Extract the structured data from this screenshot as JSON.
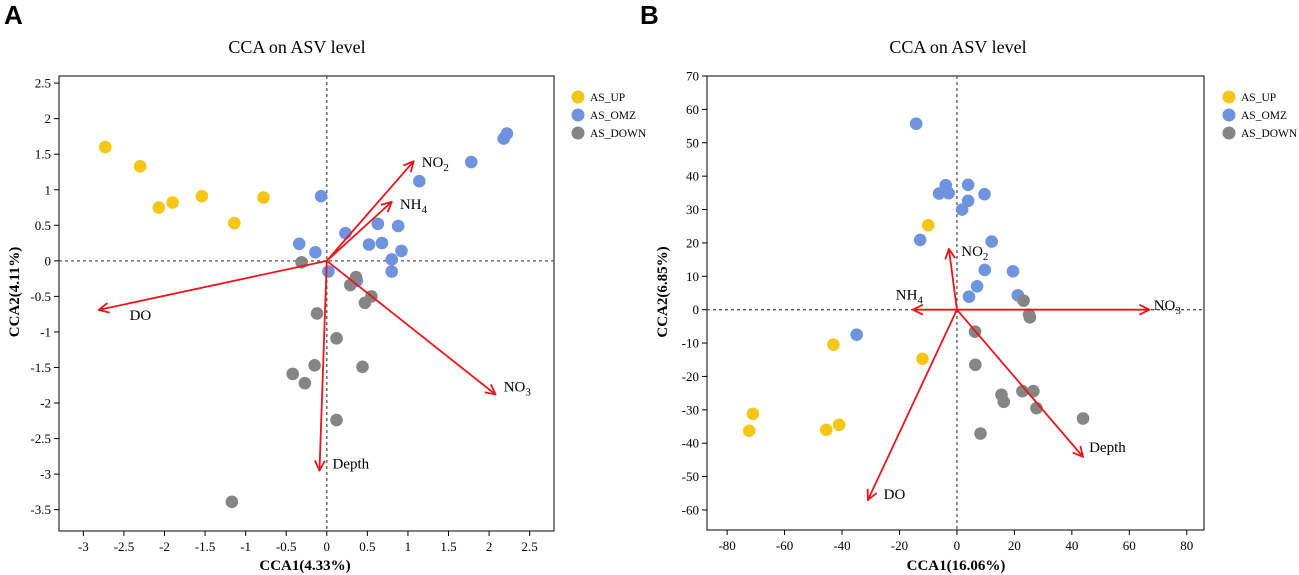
{
  "colors": {
    "AS_UP": "#F5C518",
    "AS_OMZ": "#6F93DF",
    "AS_DOWN": "#858585",
    "arrow": "#E8151B",
    "dashed": "#555555"
  },
  "chart_data": [
    {
      "panel": "A",
      "type": "scatter",
      "title": "CCA on ASV level",
      "xlabel": "CCA1(4.33%)",
      "ylabel": "CCA2(4.11%)",
      "xlim": [
        -3.3,
        2.8
      ],
      "ylim": [
        -3.8,
        2.6
      ],
      "xticks": [
        -3,
        -2.5,
        -2,
        -1.5,
        -1,
        -0.5,
        0,
        0.5,
        1,
        1.5,
        2,
        2.5
      ],
      "yticks": [
        2.5,
        2,
        1.5,
        1,
        0.5,
        0,
        -0.5,
        -1,
        -1.5,
        -2,
        -2.5,
        -3,
        -3.5
      ],
      "legend": [
        "AS_UP",
        "AS_OMZ",
        "AS_DOWN"
      ],
      "series": [
        {
          "name": "AS_UP",
          "points": [
            [
              -2.73,
              1.6
            ],
            [
              -2.3,
              1.33
            ],
            [
              -2.07,
              0.75
            ],
            [
              -1.9,
              0.82
            ],
            [
              -1.54,
              0.91
            ],
            [
              -1.14,
              0.53
            ],
            [
              -0.78,
              0.89
            ]
          ]
        },
        {
          "name": "AS_OMZ",
          "points": [
            [
              -0.07,
              0.91
            ],
            [
              -0.34,
              0.24
            ],
            [
              -0.14,
              0.12
            ],
            [
              0.02,
              -0.15
            ],
            [
              0.23,
              0.39
            ],
            [
              0.37,
              -0.28
            ],
            [
              0.52,
              0.23
            ],
            [
              0.63,
              0.52
            ],
            [
              0.68,
              0.25
            ],
            [
              0.8,
              0.02
            ],
            [
              0.8,
              -0.15
            ],
            [
              0.88,
              0.49
            ],
            [
              0.92,
              0.14
            ],
            [
              1.14,
              1.12
            ],
            [
              1.78,
              1.39
            ],
            [
              2.18,
              1.72
            ],
            [
              2.22,
              1.79
            ]
          ]
        },
        {
          "name": "AS_DOWN",
          "points": [
            [
              -0.31,
              -0.02
            ],
            [
              -0.42,
              -1.59
            ],
            [
              -0.27,
              -1.72
            ],
            [
              -0.15,
              -1.47
            ],
            [
              -0.12,
              -0.74
            ],
            [
              0.12,
              -1.09
            ],
            [
              0.29,
              -0.34
            ],
            [
              0.36,
              -0.23
            ],
            [
              0.47,
              -0.59
            ],
            [
              0.55,
              -0.5
            ],
            [
              0.44,
              -1.49
            ],
            [
              0.12,
              -2.24
            ],
            [
              -1.17,
              -3.39
            ]
          ]
        }
      ],
      "arrows": [
        {
          "label": "NO",
          "sub": "2",
          "x": 1.07,
          "y": 1.4,
          "lx": 1.17,
          "ly": 1.39,
          "anchor": "start",
          "valign": "middle"
        },
        {
          "label": "NH",
          "sub": "4",
          "x": 0.8,
          "y": 0.83,
          "lx": 0.9,
          "ly": 0.8,
          "anchor": "start",
          "valign": "middle"
        },
        {
          "label": "DO",
          "x": -2.81,
          "y": -0.69,
          "lx": -2.43,
          "ly": -0.76,
          "anchor": "start",
          "valign": "middle"
        },
        {
          "label": "NO",
          "sub": "3",
          "x": 2.08,
          "y": -1.88,
          "lx": 2.18,
          "ly": -1.77,
          "anchor": "start",
          "valign": "middle"
        },
        {
          "label": "Depth",
          "x": -0.09,
          "y": -2.95,
          "lx": 0.07,
          "ly": -2.85,
          "anchor": "start",
          "valign": "middle"
        }
      ]
    },
    {
      "panel": "B",
      "type": "scatter",
      "title": "CCA on ASV level",
      "xlabel": "CCA1(16.06%)",
      "ylabel": "CCA2(6.85%)",
      "xlim": [
        -87,
        86
      ],
      "ylim": [
        -66,
        70
      ],
      "xticks": [
        -80,
        -60,
        -40,
        -20,
        0,
        20,
        40,
        60,
        80
      ],
      "yticks": [
        70,
        60,
        50,
        40,
        30,
        20,
        10,
        0,
        -10,
        -20,
        -30,
        -40,
        -50,
        -60
      ],
      "legend": [
        "AS_UP",
        "AS_OMZ",
        "AS_DOWN"
      ],
      "series": [
        {
          "name": "AS_UP",
          "points": [
            [
              -10,
              25.3
            ],
            [
              -12,
              -14.7
            ],
            [
              -43,
              -10.5
            ],
            [
              -71,
              -31.2
            ],
            [
              -72.3,
              -36.3
            ],
            [
              -45.5,
              -36
            ],
            [
              -41,
              -34.5
            ]
          ]
        },
        {
          "name": "AS_OMZ",
          "points": [
            [
              -14.2,
              55.7
            ],
            [
              -6.2,
              34.8
            ],
            [
              -3.9,
              37.3
            ],
            [
              -2.9,
              34.9
            ],
            [
              3.9,
              37.4
            ],
            [
              3.9,
              32.6
            ],
            [
              9.6,
              34.6
            ],
            [
              1.8,
              30
            ],
            [
              -12.8,
              20.9
            ],
            [
              12.1,
              20.4
            ],
            [
              9.7,
              11.9
            ],
            [
              19.5,
              11.5
            ],
            [
              7,
              7
            ],
            [
              4.2,
              3.9
            ],
            [
              21.2,
              4.3
            ],
            [
              -34.9,
              -7.5
            ]
          ]
        },
        {
          "name": "AS_DOWN",
          "points": [
            [
              23.2,
              2.7
            ],
            [
              25.1,
              -1.5
            ],
            [
              25.4,
              -2.3
            ],
            [
              6.3,
              -6.6
            ],
            [
              6.4,
              -16.5
            ],
            [
              15.5,
              -25.5
            ],
            [
              16.3,
              -27.6
            ],
            [
              22.8,
              -24.4
            ],
            [
              26.6,
              -24.4
            ],
            [
              27.7,
              -29.5
            ],
            [
              8.2,
              -37.1
            ],
            [
              43.9,
              -32.6
            ]
          ]
        }
      ],
      "arrows": [
        {
          "label": "NO",
          "sub": "2",
          "x": -2.8,
          "y": 18.2,
          "lx": 1.5,
          "ly": 17.6,
          "anchor": "start",
          "valign": "middle"
        },
        {
          "label": "NH",
          "sub": "4",
          "x": -15.3,
          "y": 0,
          "lx": -21.3,
          "ly": 4.5,
          "anchor": "start",
          "valign": "middle"
        },
        {
          "label": "NO",
          "sub": "3",
          "x": 67,
          "y": 0,
          "lx": 68.5,
          "ly": 1.4,
          "anchor": "start",
          "valign": "middle"
        },
        {
          "label": "DO",
          "x": -31,
          "y": -57,
          "lx": -25.5,
          "ly": -55.2,
          "anchor": "start",
          "valign": "middle"
        },
        {
          "label": "Depth",
          "x": 43.9,
          "y": -44.1,
          "lx": 46,
          "ly": -41.2,
          "anchor": "start",
          "valign": "middle"
        }
      ]
    }
  ]
}
